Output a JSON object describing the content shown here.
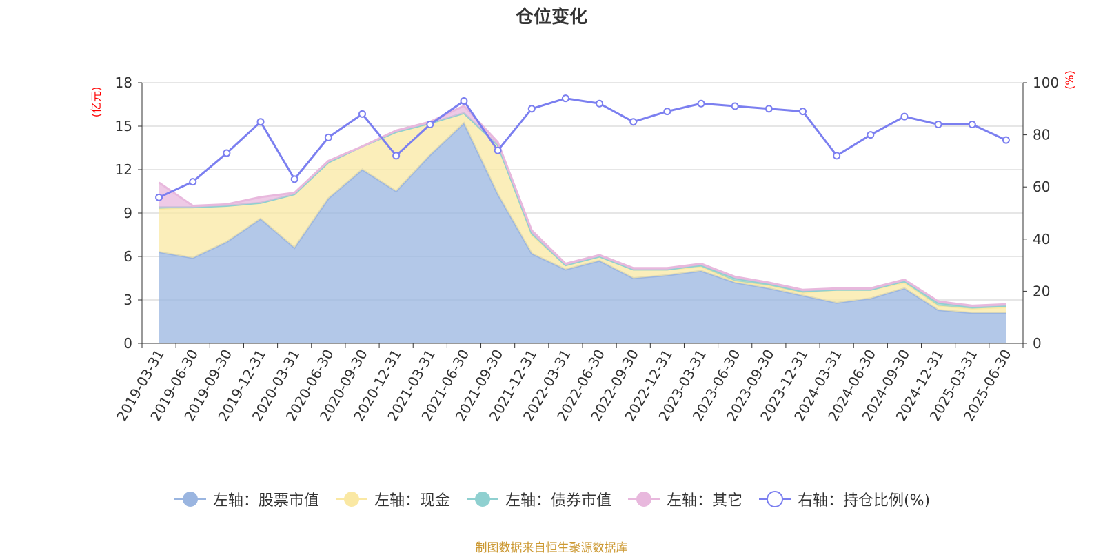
{
  "chart_data": {
    "type": "area",
    "title": "仓位变化",
    "left_axis_label": "(亿元)",
    "right_axis_label": "(%)",
    "y_left_ticks": [
      "0",
      "3",
      "6",
      "9",
      "12",
      "15",
      "18"
    ],
    "y_right_ticks": [
      "0",
      "20",
      "40",
      "60",
      "80",
      "100"
    ],
    "ylim_left": [
      0,
      18
    ],
    "ylim_right": [
      0,
      100
    ],
    "grid": true,
    "legend_position": "bottom",
    "categories": [
      "2019-03-31",
      "2019-06-30",
      "2019-09-30",
      "2019-12-31",
      "2020-03-31",
      "2020-06-30",
      "2020-09-30",
      "2020-12-31",
      "2021-03-31",
      "2021-06-30",
      "2021-09-30",
      "2021-12-31",
      "2022-03-31",
      "2022-06-30",
      "2022-09-30",
      "2022-12-31",
      "2023-03-31",
      "2023-06-30",
      "2023-09-30",
      "2023-12-31",
      "2024-03-31",
      "2024-06-30",
      "2024-09-30",
      "2024-12-31",
      "2025-03-31",
      "2025-06-30"
    ],
    "series": [
      {
        "name": "左轴：股票市值",
        "axis": "left",
        "color": "#9ab5e0",
        "values": [
          6.3,
          5.9,
          7.0,
          8.6,
          6.6,
          10.0,
          12.0,
          10.5,
          13.0,
          15.2,
          10.3,
          6.2,
          5.1,
          5.7,
          4.5,
          4.7,
          5.0,
          4.2,
          3.8,
          3.3,
          2.8,
          3.1,
          3.8,
          2.3,
          2.1,
          2.1
        ]
      },
      {
        "name": "左轴：现金",
        "axis": "left",
        "color": "#fae8a3",
        "values": [
          3.0,
          3.5,
          2.5,
          1.1,
          3.7,
          2.5,
          1.6,
          4.1,
          2.2,
          0.7,
          3.4,
          1.3,
          0.3,
          0.3,
          0.6,
          0.4,
          0.3,
          0.1,
          0.2,
          0.2,
          0.9,
          0.6,
          0.4,
          0.3,
          0.3,
          0.4
        ]
      },
      {
        "name": "左轴：债券市值",
        "axis": "left",
        "color": "#8fd0d0",
        "values": [
          0.1,
          0,
          0,
          0,
          0,
          0,
          0,
          0,
          0,
          0,
          0,
          0.1,
          0,
          0,
          0,
          0,
          0.1,
          0.2,
          0.1,
          0.1,
          0,
          0,
          0.1,
          0.2,
          0.1,
          0.1
        ]
      },
      {
        "name": "左轴：其它",
        "axis": "left",
        "color": "#e8b8dd",
        "values": [
          1.7,
          0.1,
          0.1,
          0.4,
          0.1,
          0.1,
          0,
          0.1,
          0.1,
          0.5,
          0.2,
          0.2,
          0.1,
          0.1,
          0.1,
          0.1,
          0.1,
          0.1,
          0.1,
          0.1,
          0.1,
          0.1,
          0.1,
          0.1,
          0.1,
          0.1
        ]
      },
      {
        "name": "右轴：持仓比例(%)",
        "axis": "right",
        "color": "#7b7ff0",
        "values": [
          56,
          62,
          73,
          85,
          63,
          79,
          88,
          72,
          84,
          93,
          74,
          90,
          94,
          92,
          85,
          89,
          92,
          91,
          90,
          89,
          72,
          80,
          87,
          84,
          84,
          78
        ]
      }
    ]
  },
  "source_note": "制图数据来自恒生聚源数据库"
}
